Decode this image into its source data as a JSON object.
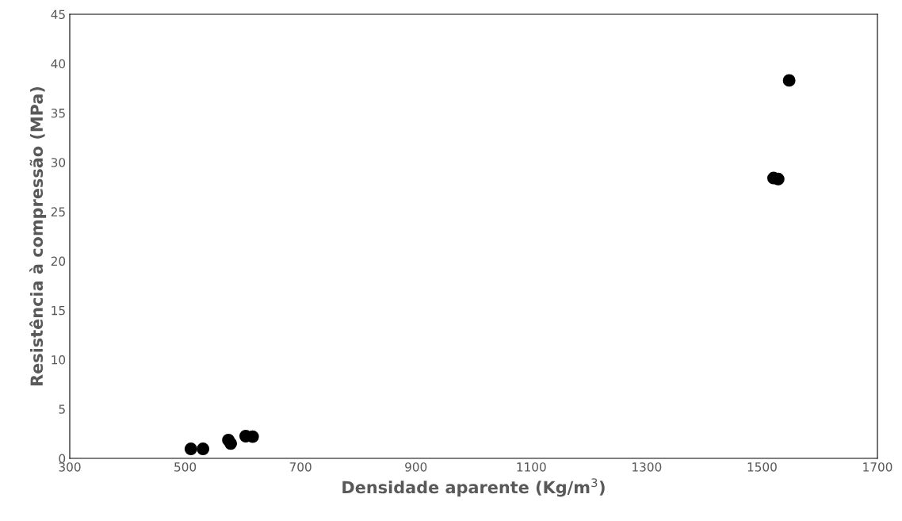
{
  "chart_data": {
    "type": "scatter",
    "xlabel": "Densidade aparente (Kg/m$^{3}$)",
    "ylabel": "Resistência à compressão (MPa)",
    "x": [
      510,
      531,
      575,
      579,
      605,
      617,
      1520,
      1528,
      1547
    ],
    "values": [
      0.96,
      0.96,
      1.85,
      1.5,
      2.25,
      2.2,
      28.4,
      28.3,
      38.3
    ],
    "color": "#000000",
    "marker": "circle",
    "xlim": [
      300,
      1700
    ],
    "xticks": [
      300,
      500,
      700,
      900,
      1100,
      1300,
      1500,
      1700
    ],
    "ylim": [
      0,
      45
    ],
    "yticks": [
      0,
      5,
      10,
      15,
      20,
      25,
      30,
      35,
      40,
      45
    ],
    "grid": false,
    "legend": false
  }
}
